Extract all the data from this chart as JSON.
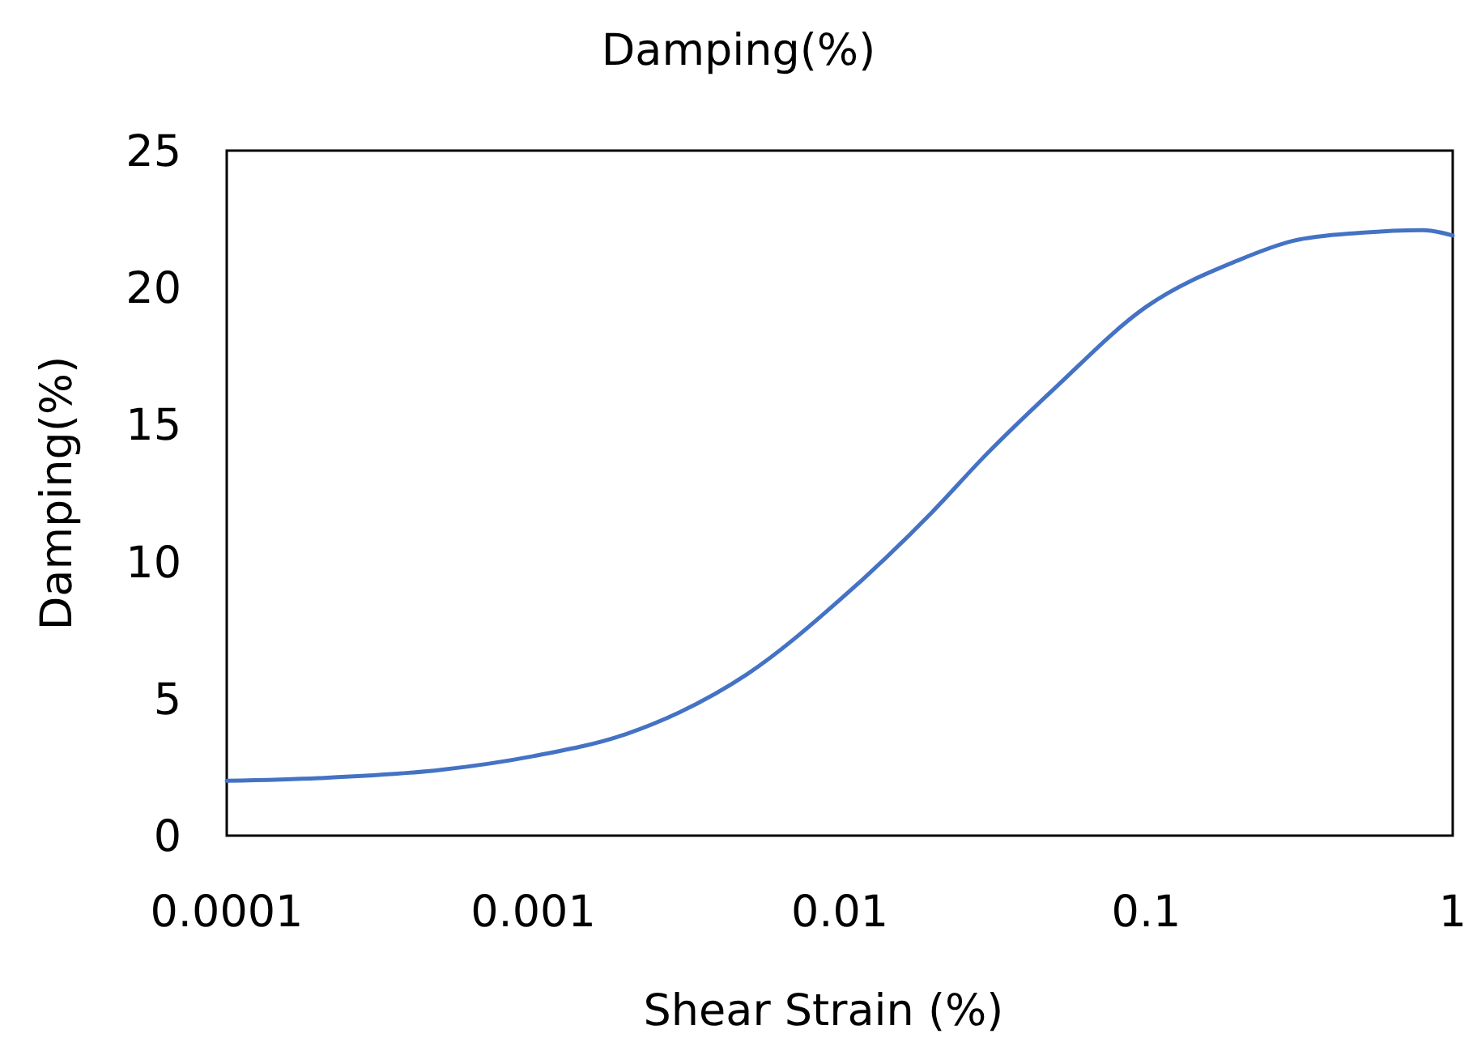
{
  "chart_data": {
    "type": "line",
    "title": "Damping(%)",
    "xlabel": "Shear Strain (%)",
    "ylabel": "Damping(%)",
    "log": "x",
    "grid": false,
    "marker": "none",
    "line_style": "solid",
    "x": [
      0.0001,
      0.0002,
      0.0005,
      0.001,
      0.002,
      0.003,
      0.005,
      0.01,
      0.02,
      0.03,
      0.05,
      0.1,
      0.2,
      0.3,
      0.5,
      0.8,
      1
    ],
    "series": [
      {
        "color": "#4472c4",
        "values": [
          2.0,
          2.1,
          2.4,
          2.9,
          3.7,
          4.5,
          5.9,
          8.6,
          11.8,
          13.9,
          16.3,
          19.3,
          21.0,
          21.7,
          22.0,
          22.1,
          21.9
        ]
      }
    ],
    "xlim": [
      0.0001,
      1
    ],
    "xticks": [
      {
        "value": 0.0001,
        "label": "0.0001"
      },
      {
        "value": 0.001,
        "label": "0.001"
      },
      {
        "value": 0.01,
        "label": "0.01"
      },
      {
        "value": 0.1,
        "label": "0.1"
      },
      1
    ],
    "ylim": [
      0,
      25
    ],
    "yticks": [
      0,
      5,
      10,
      15,
      20,
      25
    ]
  }
}
